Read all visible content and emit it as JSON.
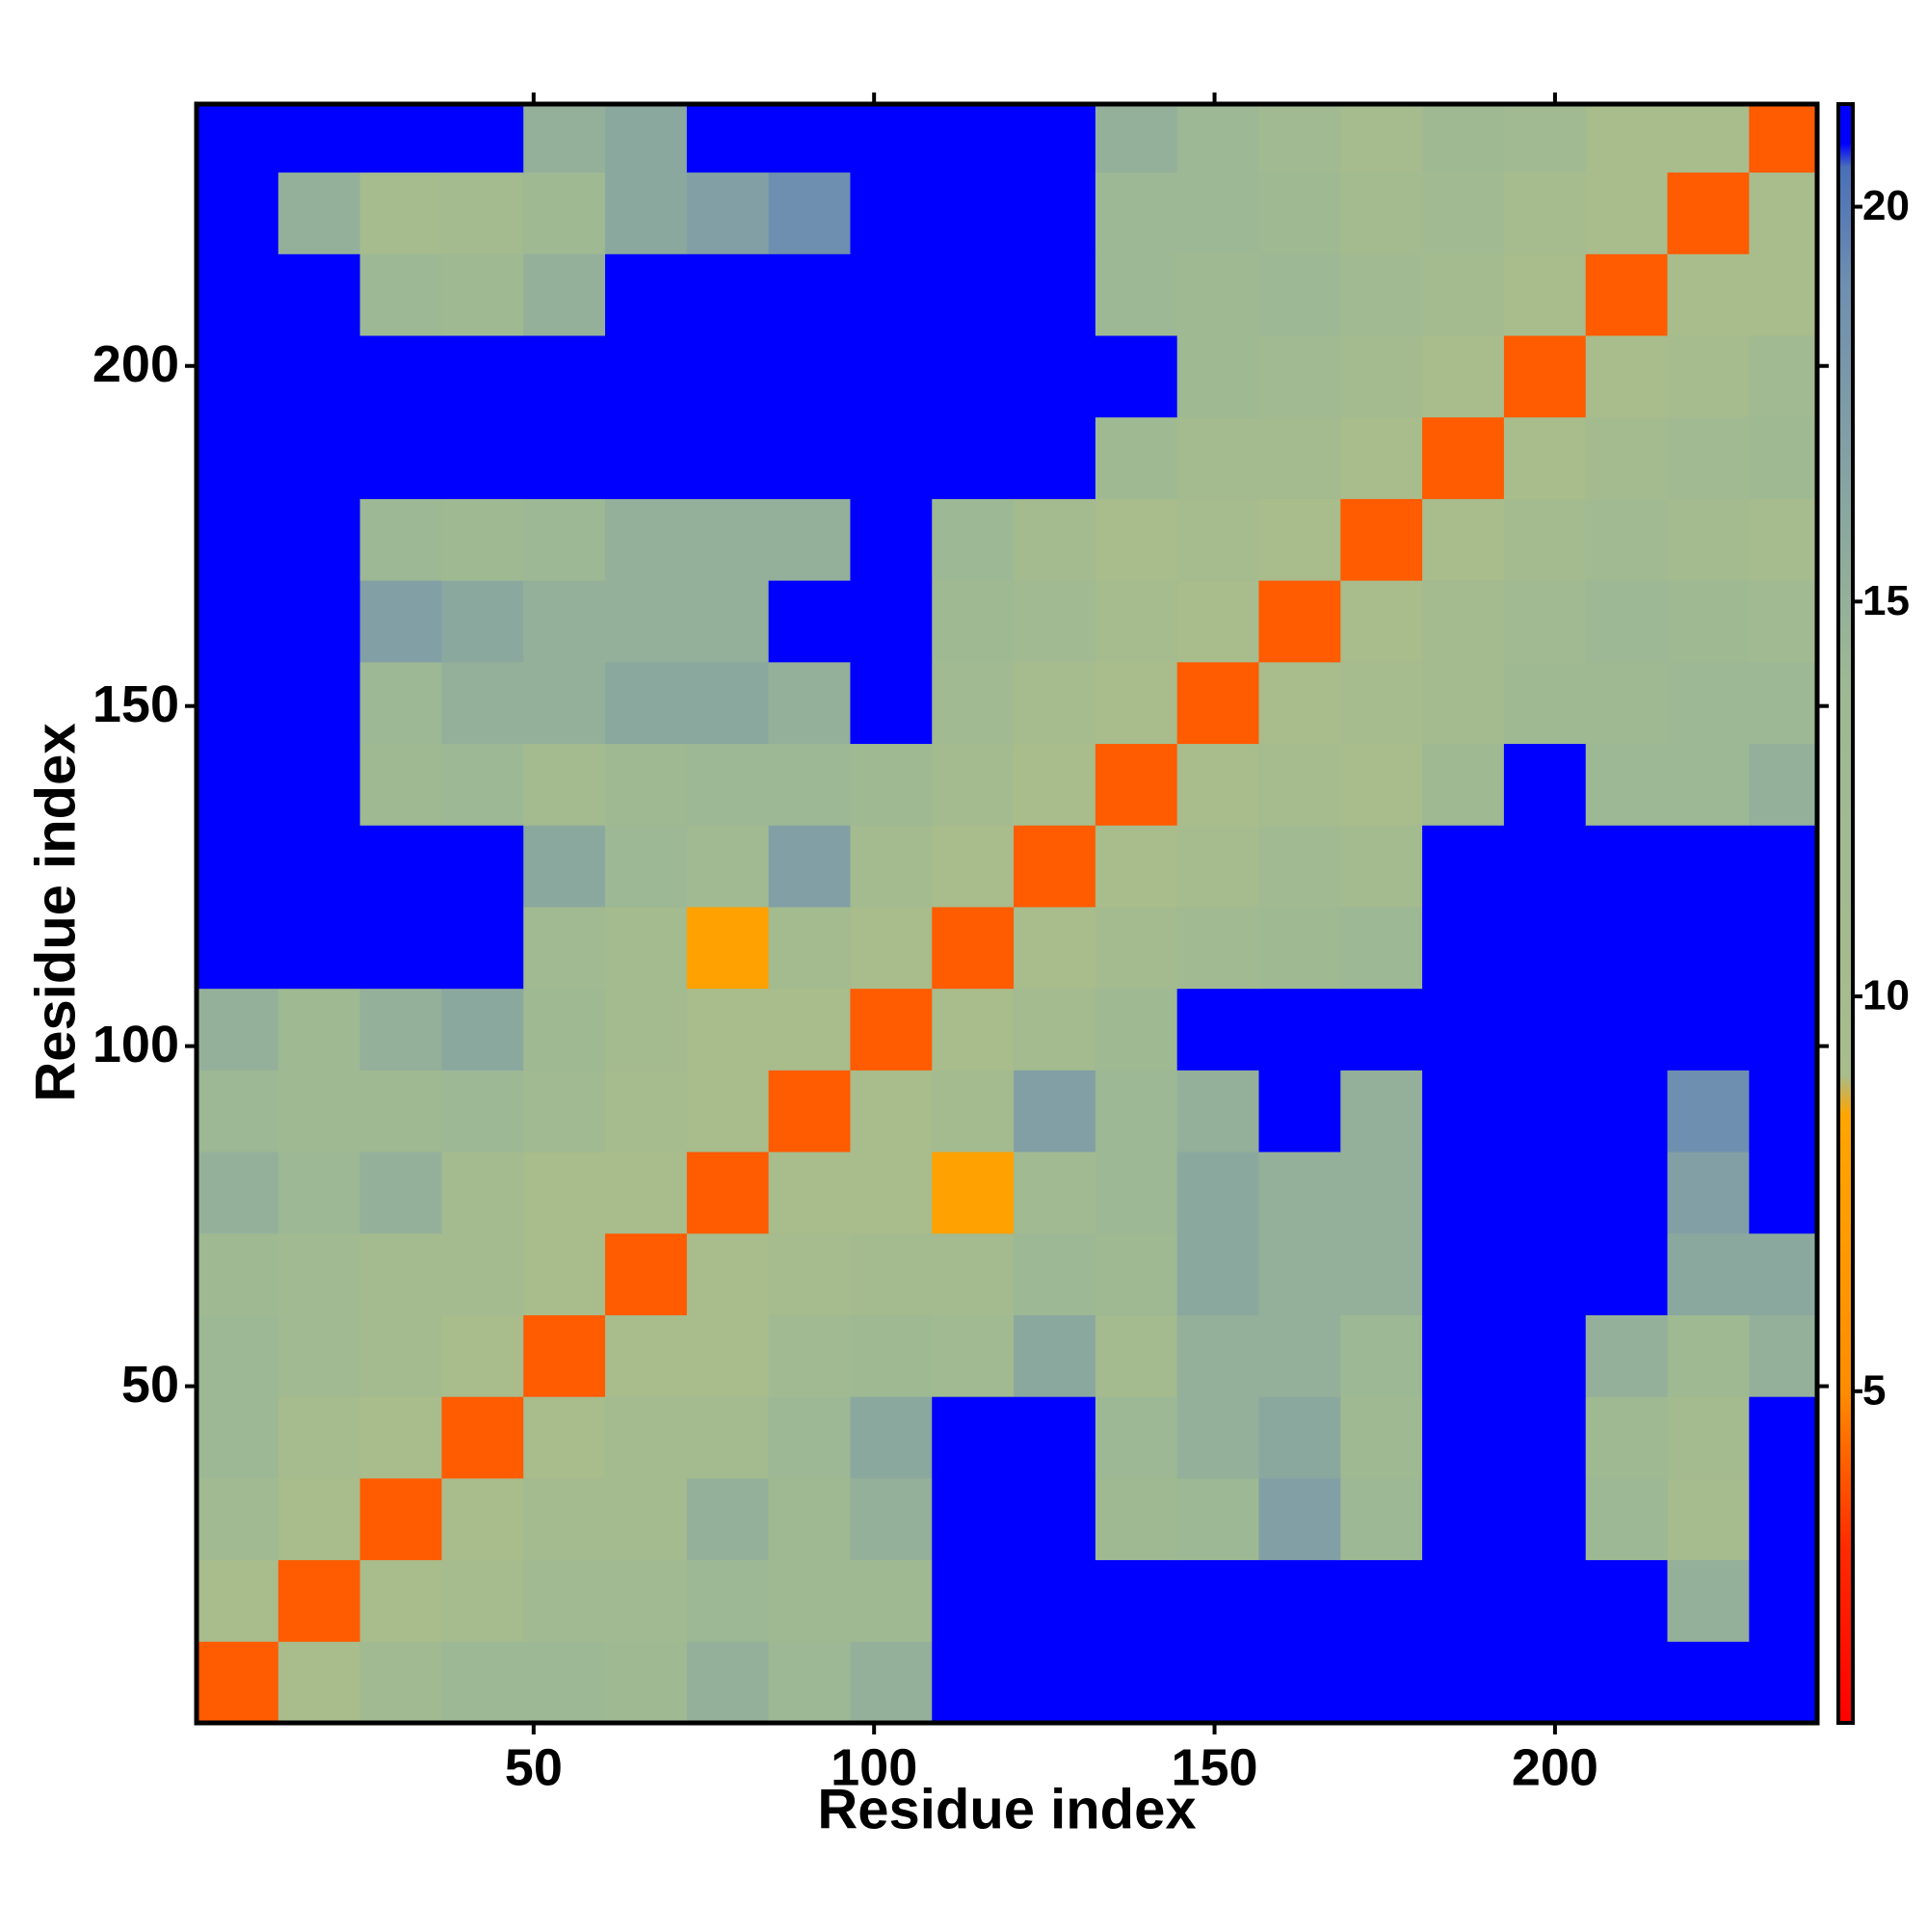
{
  "chart_data": {
    "type": "heatmap",
    "xlabel": "Residue index",
    "ylabel": "Residue index",
    "x": [
      6.5,
      18.5,
      30.5,
      42.5,
      54.5,
      66.5,
      78.5,
      90.5,
      102.5,
      114.5,
      126.5,
      138.5,
      150.5,
      162.5,
      174.5,
      186.5,
      198.5,
      210.5,
      222.5,
      234.5
    ],
    "y": [
      6.5,
      18.5,
      30.5,
      42.5,
      54.5,
      66.5,
      78.5,
      90.5,
      102.5,
      114.5,
      126.5,
      138.5,
      150.5,
      162.5,
      174.5,
      186.5,
      198.5,
      210.5,
      222.5,
      234.5
    ],
    "z": [
      [
        4,
        9,
        12,
        14,
        14,
        13,
        15,
        14,
        15,
        21,
        21,
        21,
        21,
        21,
        21,
        21,
        21,
        21,
        21,
        21
      ],
      [
        9,
        4,
        9,
        10,
        12,
        12,
        14,
        13,
        13,
        21,
        21,
        21,
        21,
        21,
        21,
        21,
        21,
        21,
        15,
        21
      ],
      [
        12,
        9,
        4,
        9,
        11,
        11,
        15,
        13,
        15,
        21,
        21,
        13,
        14,
        17,
        14,
        21,
        21,
        14,
        10,
        21
      ],
      [
        14,
        10,
        9,
        4,
        9,
        11,
        11,
        14,
        16,
        21,
        21,
        14,
        15,
        16,
        13,
        21,
        21,
        13,
        11,
        21
      ],
      [
        14,
        12,
        11,
        9,
        4,
        9,
        9,
        12,
        13,
        12,
        16,
        11,
        15,
        15,
        14,
        21,
        21,
        15,
        13,
        15
      ],
      [
        13,
        12,
        11,
        11,
        9,
        4,
        9,
        10,
        11,
        11,
        14,
        13,
        16,
        15,
        15,
        21,
        21,
        21,
        16,
        16
      ],
      [
        15,
        14,
        15,
        11,
        9,
        9,
        4,
        9,
        9,
        8,
        12,
        14,
        16,
        15,
        15,
        21,
        21,
        21,
        17,
        21
      ],
      [
        14,
        13,
        13,
        14,
        12,
        10,
        9,
        4,
        9,
        11,
        17,
        14,
        15,
        21,
        15,
        21,
        21,
        21,
        19,
        21
      ],
      [
        15,
        13,
        15,
        16,
        13,
        11,
        9,
        9,
        4,
        9,
        11,
        13,
        21,
        21,
        21,
        21,
        21,
        21,
        21,
        21
      ],
      [
        21,
        21,
        21,
        21,
        12,
        11,
        8,
        11,
        9,
        4,
        9,
        11,
        12,
        13,
        14,
        21,
        21,
        21,
        21,
        21
      ],
      [
        21,
        21,
        21,
        21,
        16,
        14,
        12,
        17,
        11,
        9,
        4,
        9,
        10,
        12,
        11,
        21,
        21,
        21,
        21,
        21
      ],
      [
        21,
        21,
        13,
        14,
        11,
        13,
        14,
        14,
        13,
        11,
        9,
        4,
        9,
        10,
        9,
        13,
        21,
        14,
        14,
        15
      ],
      [
        21,
        21,
        14,
        15,
        15,
        16,
        16,
        15,
        21,
        12,
        10,
        9,
        4,
        9,
        10,
        11,
        13,
        13,
        14,
        14
      ],
      [
        21,
        21,
        17,
        16,
        15,
        15,
        15,
        21,
        21,
        13,
        12,
        10,
        9,
        4,
        9,
        11,
        12,
        14,
        13,
        12
      ],
      [
        21,
        21,
        14,
        13,
        14,
        15,
        15,
        15,
        21,
        14,
        11,
        9,
        10,
        9,
        4,
        9,
        11,
        12,
        11,
        10
      ],
      [
        21,
        21,
        21,
        21,
        21,
        21,
        21,
        21,
        21,
        21,
        21,
        13,
        11,
        11,
        9,
        4,
        9,
        11,
        12,
        13
      ],
      [
        21,
        21,
        21,
        21,
        21,
        21,
        21,
        21,
        21,
        21,
        21,
        21,
        13,
        12,
        11,
        9,
        4,
        9,
        10,
        12
      ],
      [
        21,
        21,
        14,
        13,
        15,
        21,
        21,
        21,
        21,
        21,
        21,
        14,
        13,
        14,
        12,
        11,
        9,
        4,
        9,
        9
      ],
      [
        21,
        15,
        10,
        11,
        13,
        16,
        17,
        19,
        21,
        21,
        21,
        14,
        14,
        13,
        11,
        12,
        10,
        9,
        4,
        9
      ],
      [
        21,
        21,
        21,
        21,
        15,
        16,
        21,
        21,
        21,
        21,
        21,
        15,
        14,
        12,
        10,
        13,
        12,
        9,
        9,
        4
      ]
    ],
    "xlim": [
      0.5,
      238.5
    ],
    "ylim": [
      0.5,
      238.5
    ],
    "xticks": [
      50,
      100,
      150,
      200
    ],
    "yticks": [
      50,
      100,
      150,
      200
    ],
    "zlim": [
      0.8,
      21.3
    ],
    "zticks": [
      5,
      10,
      15,
      20
    ],
    "colorscale": [
      [
        0.8,
        "#ff0000"
      ],
      [
        3,
        "#ff2a00"
      ],
      [
        5,
        "#ff8c00"
      ],
      [
        8.5,
        "#ffa500"
      ],
      [
        9,
        "#a8bc8c"
      ],
      [
        14,
        "#9db894"
      ],
      [
        19,
        "#6f8fb0"
      ],
      [
        20.5,
        "#4a6fb8"
      ],
      [
        20.8,
        "#0000ff"
      ],
      [
        21.3,
        "#0000ff"
      ]
    ]
  }
}
